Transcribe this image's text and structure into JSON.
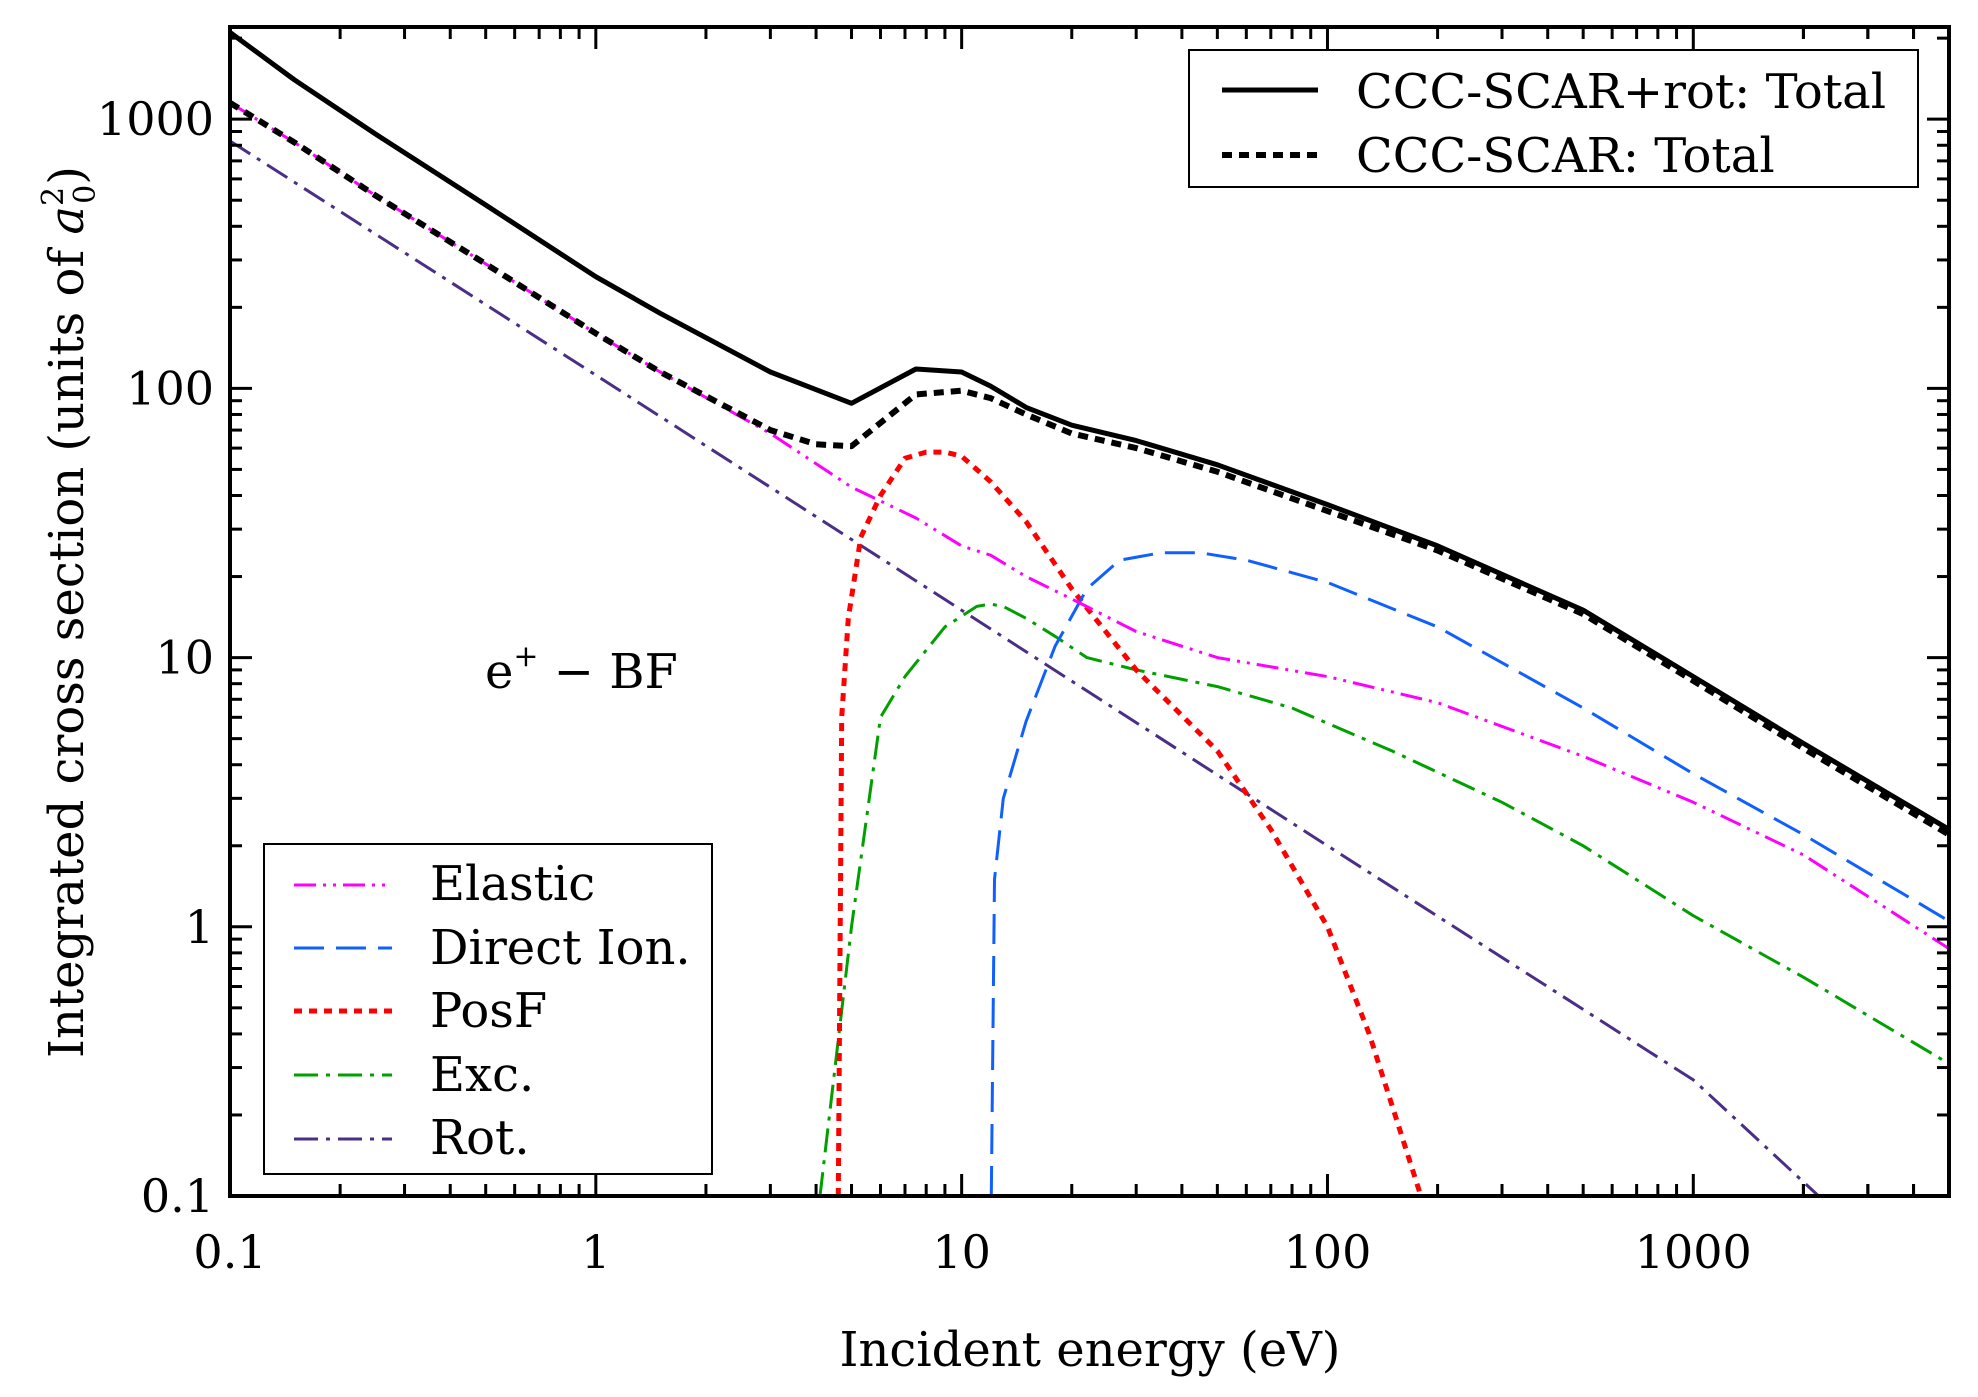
{
  "chart_data": {
    "type": "line",
    "title": "",
    "xlabel": "Incident energy (eV)",
    "ylabel": "Integrated cross section (units of",
    "ylabel_unit": "a",
    "ylabel_unit_sup": "2",
    "ylabel_unit_sub": "0",
    "ylabel_close": ")",
    "xscale": "log",
    "yscale": "log",
    "xlim": [
      0.1,
      5000
    ],
    "ylim": [
      0.1,
      2200
    ],
    "xticks": [
      0.1,
      1,
      10,
      100,
      1000
    ],
    "xtick_labels": [
      "0.1",
      "1",
      "10",
      "100",
      "1000"
    ],
    "yticks": [
      0.1,
      1,
      10,
      100,
      1000
    ],
    "ytick_labels": [
      "0.1",
      "1",
      "10",
      "100",
      "1000"
    ],
    "annotation": {
      "text": "e",
      "sup": "+",
      "rest": " − BF"
    },
    "legend_top_right": [
      "CCC-SCAR+rot: Total",
      "CCC-SCAR: Total"
    ],
    "legend_bottom_left": [
      "Elastic",
      "Direct Ion.",
      "PosF",
      "Exc.",
      "Rot."
    ],
    "series": [
      {
        "name": "CCC-SCAR+rot: Total",
        "color": "#000000",
        "style": "solid",
        "width": 5,
        "x": [
          0.1,
          0.15,
          0.25,
          0.5,
          1,
          1.5,
          3,
          5,
          7.5,
          10,
          12,
          15,
          20,
          30,
          50,
          100,
          200,
          500,
          1000,
          2000,
          5000
        ],
        "y": [
          2100,
          1400,
          880,
          480,
          260,
          190,
          115,
          88,
          118,
          115,
          102,
          85,
          73,
          64,
          52,
          37,
          26,
          15,
          8.5,
          4.8,
          2.3
        ]
      },
      {
        "name": "CCC-SCAR: Total",
        "color": "#000000",
        "style": "dot",
        "width": 6,
        "x": [
          0.1,
          0.15,
          0.25,
          0.5,
          1,
          1.5,
          3,
          4,
          5,
          7.5,
          10,
          12,
          15,
          20,
          30,
          50,
          100,
          200,
          500,
          1000,
          2000,
          5000
        ],
        "y": [
          1150,
          820,
          520,
          290,
          160,
          115,
          70,
          62,
          61,
          95,
          98,
          92,
          80,
          68,
          60,
          49,
          35,
          25,
          14.5,
          8.2,
          4.6,
          2.2
        ]
      },
      {
        "name": "Elastic",
        "color": "#ff00ff",
        "style": "dashdotdot",
        "width": 3,
        "x": [
          0.1,
          0.15,
          0.25,
          0.5,
          1,
          1.5,
          3,
          5,
          7.5,
          10,
          12,
          15,
          20,
          30,
          50,
          100,
          200,
          500,
          1000,
          2000,
          5000
        ],
        "y": [
          1150,
          820,
          520,
          290,
          160,
          115,
          68,
          43,
          33,
          26,
          24,
          20,
          16.5,
          12.5,
          10,
          8.5,
          6.8,
          4.3,
          2.9,
          1.85,
          0.83
        ]
      },
      {
        "name": "Direct Ion.",
        "color": "#1060ff",
        "style": "dash",
        "width": 3,
        "x": [
          12.05,
          12.3,
          13,
          15,
          18,
          22,
          27,
          35,
          45,
          60,
          100,
          200,
          500,
          1000,
          2000,
          5000
        ],
        "y": [
          0.1,
          1.5,
          3,
          5.8,
          11,
          18,
          23,
          24.5,
          24.5,
          23,
          19,
          13,
          6.5,
          3.7,
          2.2,
          1.05
        ]
      },
      {
        "name": "PosF",
        "color": "#ff0000",
        "style": "dot",
        "width": 5,
        "x": [
          4.6,
          4.7,
          4.9,
          5.3,
          6,
          7,
          8,
          9,
          10,
          12,
          15,
          20,
          30,
          50,
          70,
          100,
          130,
          180
        ],
        "y": [
          0.1,
          6,
          14,
          28,
          40,
          55,
          58,
          58,
          56,
          45,
          32,
          18,
          9,
          4.5,
          2.3,
          1,
          0.4,
          0.1
        ]
      },
      {
        "name": "Exc.",
        "color": "#00a000",
        "style": "dashdot",
        "width": 3,
        "x": [
          4.1,
          5,
          6,
          7,
          9,
          11,
          12,
          13,
          15,
          18,
          22,
          30,
          50,
          80,
          150,
          300,
          500,
          1000,
          2000,
          5000
        ],
        "y": [
          0.1,
          1,
          6,
          8.5,
          13,
          15.5,
          15.8,
          15.5,
          14,
          12,
          10,
          9,
          7.8,
          6.5,
          4.5,
          2.9,
          2,
          1.1,
          0.65,
          0.31
        ]
      },
      {
        "name": "Rot.",
        "color": "#4b2e86",
        "style": "dashdot",
        "width": 3,
        "x": [
          0.1,
          1,
          10,
          100,
          1000,
          2200
        ],
        "y": [
          830,
          112,
          15,
          2,
          0.27,
          0.1
        ]
      }
    ]
  }
}
